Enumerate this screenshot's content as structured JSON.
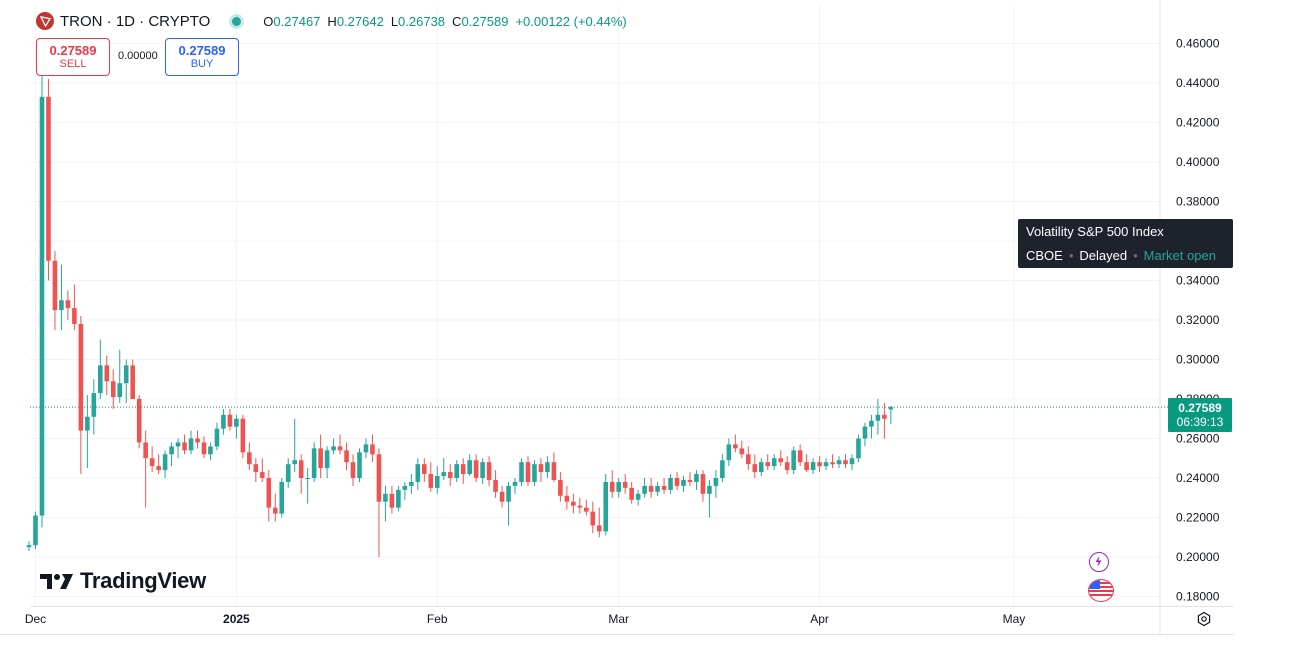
{
  "header": {
    "symbol_title": "TRON · 1D · CRYPTO",
    "ohlc": [
      {
        "key": "O",
        "value": "0.27467"
      },
      {
        "key": "H",
        "value": "0.27642"
      },
      {
        "key": "L",
        "value": "0.26738"
      },
      {
        "key": "C",
        "value": "0.27589"
      }
    ],
    "change": "+0.00122 (+0.44%)"
  },
  "trade": {
    "sell_price": "0.27589",
    "sell_label": "SELL",
    "spread": "0.00000",
    "buy_price": "0.27589",
    "buy_label": "BUY"
  },
  "brand": {
    "name": "TradingView"
  },
  "tooltip": {
    "title": "Volatility S&P 500 Index",
    "exchange": "CBOE",
    "delay": "Delayed",
    "status": "Market open"
  },
  "last_price": {
    "price": "0.27589",
    "countdown": "06:39:13"
  },
  "icons": [
    "tron-logo-icon",
    "live-status-icon",
    "flash-icon",
    "us-flag-icon",
    "settings-icon"
  ],
  "colors": {
    "up": "#26a69a",
    "down": "#ef5350",
    "price_line": "#089981"
  },
  "chart_data": {
    "type": "candlestick",
    "title": "TRON · 1D · CRYPTO",
    "y_ticks": [
      "0.18000",
      "0.20000",
      "0.22000",
      "0.24000",
      "0.26000",
      "0.28000",
      "0.30000",
      "0.32000",
      "0.34000",
      "0.36000",
      "0.38000",
      "0.40000",
      "0.42000",
      "0.44000",
      "0.46000"
    ],
    "ylim": [
      0.18,
      0.46
    ],
    "x_labels": [
      {
        "label": "Dec",
        "day": 0
      },
      {
        "label": "2025",
        "day": 31
      },
      {
        "label": "Feb",
        "day": 62
      },
      {
        "label": "Mar",
        "day": 90
      },
      {
        "label": "Apr",
        "day": 121
      },
      {
        "label": "May",
        "day": 151
      }
    ],
    "start_day": -1,
    "last_price": 0.27589,
    "grid": true,
    "candles": [
      [
        0.205,
        0.208,
        0.203,
        0.206
      ],
      [
        0.206,
        0.223,
        0.204,
        0.221
      ],
      [
        0.221,
        0.445,
        0.215,
        0.433
      ],
      [
        0.433,
        0.442,
        0.34,
        0.35
      ],
      [
        0.35,
        0.355,
        0.315,
        0.325
      ],
      [
        0.325,
        0.348,
        0.315,
        0.33
      ],
      [
        0.33,
        0.335,
        0.32,
        0.326
      ],
      [
        0.326,
        0.338,
        0.315,
        0.318
      ],
      [
        0.318,
        0.322,
        0.242,
        0.264
      ],
      [
        0.264,
        0.282,
        0.245,
        0.271
      ],
      [
        0.271,
        0.29,
        0.262,
        0.283
      ],
      [
        0.283,
        0.31,
        0.28,
        0.297
      ],
      [
        0.297,
        0.302,
        0.282,
        0.289
      ],
      [
        0.289,
        0.295,
        0.275,
        0.281
      ],
      [
        0.281,
        0.305,
        0.278,
        0.288
      ],
      [
        0.288,
        0.3,
        0.278,
        0.297
      ],
      [
        0.297,
        0.3,
        0.28,
        0.28
      ],
      [
        0.28,
        0.282,
        0.255,
        0.258
      ],
      [
        0.258,
        0.264,
        0.225,
        0.25
      ],
      [
        0.25,
        0.256,
        0.243,
        0.246
      ],
      [
        0.246,
        0.252,
        0.242,
        0.244
      ],
      [
        0.244,
        0.254,
        0.24,
        0.252
      ],
      [
        0.252,
        0.258,
        0.246,
        0.256
      ],
      [
        0.256,
        0.26,
        0.25,
        0.258
      ],
      [
        0.258,
        0.262,
        0.252,
        0.254
      ],
      [
        0.254,
        0.264,
        0.252,
        0.26
      ],
      [
        0.26,
        0.264,
        0.255,
        0.258
      ],
      [
        0.258,
        0.261,
        0.25,
        0.252
      ],
      [
        0.252,
        0.258,
        0.249,
        0.256
      ],
      [
        0.256,
        0.268,
        0.254,
        0.265
      ],
      [
        0.265,
        0.275,
        0.262,
        0.272
      ],
      [
        0.272,
        0.275,
        0.264,
        0.266
      ],
      [
        0.266,
        0.272,
        0.26,
        0.27
      ],
      [
        0.27,
        0.272,
        0.25,
        0.253
      ],
      [
        0.253,
        0.258,
        0.244,
        0.247
      ],
      [
        0.247,
        0.25,
        0.238,
        0.243
      ],
      [
        0.243,
        0.25,
        0.238,
        0.24
      ],
      [
        0.24,
        0.244,
        0.218,
        0.225
      ],
      [
        0.225,
        0.232,
        0.218,
        0.222
      ],
      [
        0.222,
        0.24,
        0.22,
        0.238
      ],
      [
        0.238,
        0.25,
        0.235,
        0.247
      ],
      [
        0.247,
        0.27,
        0.243,
        0.249
      ],
      [
        0.249,
        0.252,
        0.232,
        0.24
      ],
      [
        0.24,
        0.245,
        0.227,
        0.24
      ],
      [
        0.24,
        0.258,
        0.238,
        0.255
      ],
      [
        0.255,
        0.262,
        0.24,
        0.245
      ],
      [
        0.245,
        0.256,
        0.24,
        0.254
      ],
      [
        0.254,
        0.26,
        0.252,
        0.256
      ],
      [
        0.256,
        0.262,
        0.252,
        0.254
      ],
      [
        0.254,
        0.258,
        0.244,
        0.248
      ],
      [
        0.248,
        0.252,
        0.236,
        0.24
      ],
      [
        0.24,
        0.255,
        0.238,
        0.253
      ],
      [
        0.253,
        0.26,
        0.25,
        0.257
      ],
      [
        0.257,
        0.262,
        0.248,
        0.252
      ],
      [
        0.252,
        0.255,
        0.2,
        0.228
      ],
      [
        0.228,
        0.236,
        0.218,
        0.232
      ],
      [
        0.232,
        0.236,
        0.222,
        0.225
      ],
      [
        0.225,
        0.236,
        0.223,
        0.234
      ],
      [
        0.234,
        0.238,
        0.229,
        0.236
      ],
      [
        0.236,
        0.242,
        0.232,
        0.238
      ],
      [
        0.238,
        0.25,
        0.234,
        0.247
      ],
      [
        0.247,
        0.25,
        0.238,
        0.242
      ],
      [
        0.242,
        0.248,
        0.233,
        0.235
      ],
      [
        0.235,
        0.246,
        0.232,
        0.241
      ],
      [
        0.241,
        0.25,
        0.239,
        0.243
      ],
      [
        0.243,
        0.247,
        0.236,
        0.24
      ],
      [
        0.24,
        0.249,
        0.238,
        0.247
      ],
      [
        0.247,
        0.25,
        0.237,
        0.242
      ],
      [
        0.242,
        0.252,
        0.241,
        0.249
      ],
      [
        0.249,
        0.252,
        0.238,
        0.24
      ],
      [
        0.24,
        0.25,
        0.237,
        0.248
      ],
      [
        0.248,
        0.251,
        0.236,
        0.239
      ],
      [
        0.239,
        0.244,
        0.23,
        0.233
      ],
      [
        0.233,
        0.236,
        0.225,
        0.228
      ],
      [
        0.228,
        0.238,
        0.216,
        0.236
      ],
      [
        0.236,
        0.24,
        0.232,
        0.238
      ],
      [
        0.238,
        0.25,
        0.236,
        0.248
      ],
      [
        0.248,
        0.251,
        0.236,
        0.238
      ],
      [
        0.238,
        0.249,
        0.236,
        0.247
      ],
      [
        0.247,
        0.25,
        0.238,
        0.243
      ],
      [
        0.243,
        0.251,
        0.24,
        0.248
      ],
      [
        0.248,
        0.253,
        0.238,
        0.239
      ],
      [
        0.239,
        0.243,
        0.228,
        0.231
      ],
      [
        0.231,
        0.236,
        0.224,
        0.228
      ],
      [
        0.228,
        0.232,
        0.222,
        0.226
      ],
      [
        0.226,
        0.23,
        0.222,
        0.225
      ],
      [
        0.225,
        0.229,
        0.221,
        0.223
      ],
      [
        0.223,
        0.228,
        0.212,
        0.216
      ],
      [
        0.216,
        0.225,
        0.21,
        0.213
      ],
      [
        0.213,
        0.242,
        0.211,
        0.238
      ],
      [
        0.238,
        0.244,
        0.23,
        0.233
      ],
      [
        0.233,
        0.24,
        0.23,
        0.238
      ],
      [
        0.238,
        0.242,
        0.232,
        0.235
      ],
      [
        0.235,
        0.238,
        0.227,
        0.229
      ],
      [
        0.229,
        0.234,
        0.226,
        0.232
      ],
      [
        0.232,
        0.24,
        0.23,
        0.236
      ],
      [
        0.236,
        0.24,
        0.23,
        0.233
      ],
      [
        0.233,
        0.238,
        0.231,
        0.236
      ],
      [
        0.236,
        0.24,
        0.232,
        0.234
      ],
      [
        0.234,
        0.242,
        0.232,
        0.24
      ],
      [
        0.24,
        0.243,
        0.234,
        0.236
      ],
      [
        0.236,
        0.241,
        0.233,
        0.239
      ],
      [
        0.239,
        0.243,
        0.236,
        0.238
      ],
      [
        0.238,
        0.244,
        0.234,
        0.242
      ],
      [
        0.242,
        0.244,
        0.228,
        0.232
      ],
      [
        0.232,
        0.239,
        0.22,
        0.236
      ],
      [
        0.236,
        0.244,
        0.23,
        0.24
      ],
      [
        0.24,
        0.252,
        0.238,
        0.249
      ],
      [
        0.249,
        0.26,
        0.246,
        0.257
      ],
      [
        0.257,
        0.262,
        0.253,
        0.255
      ],
      [
        0.255,
        0.259,
        0.25,
        0.252
      ],
      [
        0.252,
        0.256,
        0.244,
        0.247
      ],
      [
        0.247,
        0.252,
        0.24,
        0.243
      ],
      [
        0.243,
        0.25,
        0.241,
        0.248
      ],
      [
        0.248,
        0.252,
        0.244,
        0.246
      ],
      [
        0.246,
        0.252,
        0.244,
        0.25
      ],
      [
        0.25,
        0.254,
        0.246,
        0.248
      ],
      [
        0.248,
        0.251,
        0.242,
        0.244
      ],
      [
        0.244,
        0.256,
        0.242,
        0.254
      ],
      [
        0.254,
        0.257,
        0.246,
        0.248
      ],
      [
        0.248,
        0.252,
        0.243,
        0.244
      ],
      [
        0.244,
        0.25,
        0.242,
        0.248
      ],
      [
        0.248,
        0.251,
        0.243,
        0.246
      ],
      [
        0.246,
        0.25,
        0.244,
        0.248
      ],
      [
        0.248,
        0.252,
        0.245,
        0.247
      ],
      [
        0.247,
        0.251,
        0.245,
        0.249
      ],
      [
        0.249,
        0.252,
        0.245,
        0.247
      ],
      [
        0.247,
        0.252,
        0.244,
        0.25
      ],
      [
        0.25,
        0.262,
        0.248,
        0.26
      ],
      [
        0.26,
        0.268,
        0.256,
        0.266
      ],
      [
        0.266,
        0.272,
        0.26,
        0.269
      ],
      [
        0.269,
        0.28,
        0.262,
        0.272
      ],
      [
        0.272,
        0.278,
        0.26,
        0.27
      ],
      [
        0.2747,
        0.2764,
        0.2674,
        0.2759
      ]
    ]
  }
}
